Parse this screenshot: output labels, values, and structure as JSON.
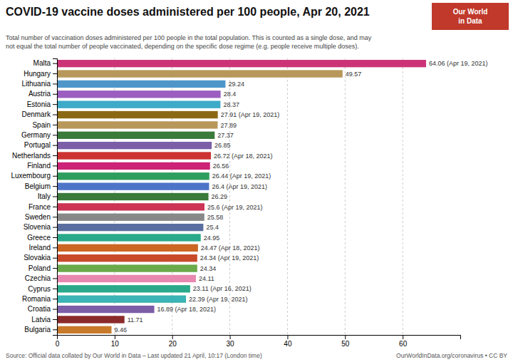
{
  "chart_data": {
    "type": "bar",
    "orientation": "horizontal",
    "title": "COVID-19 vaccine doses administered per 100 people, Apr 20, 2021",
    "subtitle": "Total number of vaccination doses administered per 100 people in the total population. This is counted as a single dose, and may\nnot equal the total number of people vaccinated, depending on the specific dose regime (e.g. people receive multiple doses).",
    "annotations": [
      "Source: Official data collated by Our World in Data – Last updated 21 April, 10:17 (London time)",
      "OurWorldInData.org/coronavirus • CC BY",
      "Our World\nin Data"
    ],
    "categories": [
      "Malta",
      "Hungary",
      "Lithuania",
      "Austria",
      "Estonia",
      "Denmark",
      "Spain",
      "Germany",
      "Portugal",
      "Netherlands",
      "Finland",
      "Luxembourg",
      "Belgium",
      "Italy",
      "France",
      "Sweden",
      "Slovenia",
      "Greece",
      "Ireland",
      "Slovakia",
      "Poland",
      "Czechia",
      "Cyprus",
      "Romania",
      "Croatia",
      "Latvia",
      "Bulgaria"
    ],
    "values": [
      64.06,
      49.57,
      29.24,
      28.4,
      28.37,
      27.91,
      27.89,
      27.37,
      26.85,
      26.72,
      26.56,
      26.44,
      26.4,
      26.29,
      25.6,
      25.58,
      25.4,
      24.95,
      24.47,
      24.34,
      24.34,
      24.11,
      23.11,
      22.39,
      16.89,
      11.71,
      9.46
    ],
    "value_labels": [
      "64.06 (Apr 19, 2021)",
      "49.57",
      "29.24",
      "28.4",
      "28.37",
      "27.91 (Apr 19, 2021)",
      "27.89",
      "27.37",
      "26.85",
      "26.72 (Apr 18, 2021)",
      "26.56",
      "26.44 (Apr 19, 2021)",
      "26.4 (Apr 19, 2021)",
      "26.29",
      "25.6 (Apr 19, 2021)",
      "25.58",
      "25.4",
      "24.95",
      "24.47 (Apr 18, 2021)",
      "24.34 (Apr 19, 2021)",
      "24.34",
      "24.11",
      "23.11 (Apr 16, 2021)",
      "22.39 (Apr 19, 2021)",
      "16.89 (Apr 18, 2021)",
      "11.71",
      "9.46"
    ],
    "data_labels": true,
    "colors": [
      "#cc3377",
      "#b8975a",
      "#4e96c8",
      "#9b5ec0",
      "#3daac8",
      "#8b6914",
      "#b8975a",
      "#3a7a3a",
      "#7b5ea7",
      "#cc3333",
      "#cc2277",
      "#2e9e5e",
      "#4e74c8",
      "#3a7a3a",
      "#cc3355",
      "#888888",
      "#5a6ea0",
      "#2aaa8a",
      "#cc6622",
      "#c84a2a",
      "#6aaa4a",
      "#e888b0",
      "#2aaa8a",
      "#3ab4b4",
      "#7b5ea7",
      "#8b2a2a",
      "#c87a2a"
    ],
    "xlim": [
      0,
      70
    ],
    "xticks": [
      0,
      10,
      20,
      30,
      40,
      50,
      60
    ],
    "grid": true
  }
}
